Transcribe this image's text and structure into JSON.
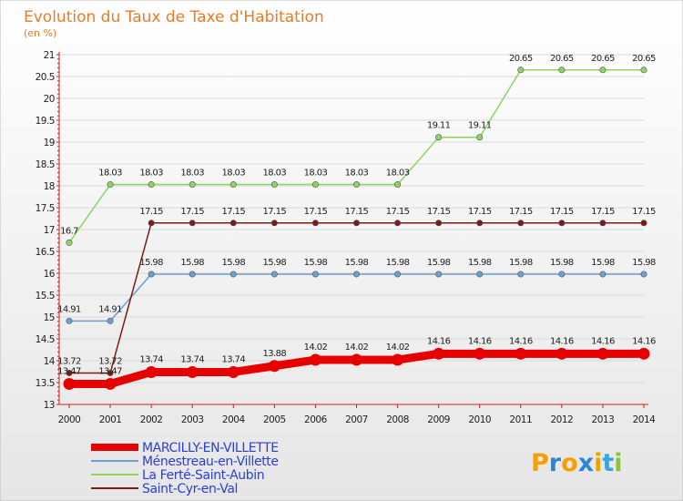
{
  "title": "Evolution du Taux de Taxe d'Habitation",
  "subtitle": "(en %)",
  "logo": {
    "letters": [
      "P",
      "r",
      "o",
      "x",
      "i",
      "t",
      "i"
    ],
    "colors": [
      "#f5a000",
      "#2b86d8",
      "#f5a000",
      "#2b86d8",
      "#e8a400",
      "#34a7e0",
      "#8fc23b"
    ]
  },
  "colors": {
    "background_top": "#ffffff",
    "background_bottom": "#e6e6e6",
    "grid": "#d9d9d9",
    "axis": "#cc1f1f"
  },
  "chart_data": {
    "type": "line",
    "x": [
      2000,
      2001,
      2002,
      2003,
      2004,
      2005,
      2006,
      2007,
      2008,
      2009,
      2010,
      2011,
      2012,
      2013,
      2014
    ],
    "ylim": [
      13,
      21
    ],
    "yticks": [
      13,
      13.5,
      14,
      14.5,
      15,
      15.5,
      16,
      16.5,
      17,
      17.5,
      18,
      18.5,
      19,
      19.5,
      20,
      20.5,
      21
    ],
    "ytick_labels": [
      "13",
      "13.5",
      "14",
      "14.5",
      "15",
      "15.5",
      "16",
      "16.5",
      "17",
      "17.5",
      "18",
      "18.5",
      "19",
      "19.5",
      "20",
      "20.5",
      "21"
    ],
    "grid": "horizontal",
    "legend_position": "bottom-left",
    "series": [
      {
        "name": "MARCILLY-EN-VILLETTE",
        "color": "#e60000",
        "values": [
          13.47,
          13.47,
          13.74,
          13.74,
          13.74,
          13.88,
          14.02,
          14.02,
          14.02,
          14.16,
          14.16,
          14.16,
          14.16,
          14.16,
          14.16
        ],
        "labels": [
          "13.47",
          "13.47",
          "13.74",
          "13.74",
          "13.74",
          "13.88",
          "14.02",
          "14.02",
          "14.02",
          "14.16",
          "14.16",
          "14.16",
          "14.16",
          "14.16",
          "14.16"
        ]
      },
      {
        "name": "Ménestreau-en-Villette",
        "color": "#6d9fcf",
        "values": [
          14.91,
          14.91,
          15.98,
          15.98,
          15.98,
          15.98,
          15.98,
          15.98,
          15.98,
          15.98,
          15.98,
          15.98,
          15.98,
          15.98,
          15.98
        ],
        "labels": [
          "14.91",
          "14.91",
          "15.98",
          "15.98",
          "15.98",
          "15.98",
          "15.98",
          "15.98",
          "15.98",
          "15.98",
          "15.98",
          "15.98",
          "15.98",
          "15.98",
          "15.98"
        ]
      },
      {
        "name": "La Ferté-Saint-Aubin",
        "color": "#8fd460",
        "values": [
          16.7,
          18.03,
          18.03,
          18.03,
          18.03,
          18.03,
          18.03,
          18.03,
          18.03,
          19.11,
          19.11,
          20.65,
          20.65,
          20.65,
          20.65
        ],
        "labels": [
          "16.7",
          "18.03",
          "18.03",
          "18.03",
          "18.03",
          "18.03",
          "18.03",
          "18.03",
          "18.03",
          "19.11",
          "19.11",
          "20.65",
          "20.65",
          "20.65",
          "20.65"
        ]
      },
      {
        "name": "Saint-Cyr-en-Val",
        "color": "#7a1a1a",
        "values": [
          13.72,
          13.72,
          17.15,
          17.15,
          17.15,
          17.15,
          17.15,
          17.15,
          17.15,
          17.15,
          17.15,
          17.15,
          17.15,
          17.15,
          17.15
        ],
        "labels": [
          "13.72",
          "13.72",
          "17.15",
          "17.15",
          "17.15",
          "17.15",
          "17.15",
          "17.15",
          "17.15",
          "17.15",
          "17.15",
          "17.15",
          "17.15",
          "17.15",
          "17.15"
        ]
      }
    ]
  }
}
